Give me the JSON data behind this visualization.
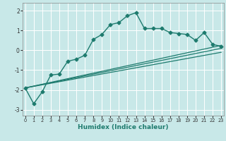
{
  "xlabel": "Humidex (Indice chaleur)",
  "x_ticks": [
    0,
    1,
    2,
    3,
    4,
    5,
    6,
    7,
    8,
    9,
    10,
    11,
    12,
    13,
    14,
    15,
    16,
    17,
    18,
    19,
    20,
    21,
    22,
    23
  ],
  "ylim": [
    -3.3,
    2.4
  ],
  "xlim": [
    -0.3,
    23.3
  ],
  "yticks": [
    -3,
    -2,
    -1,
    0,
    1,
    2
  ],
  "background_color": "#c8e8e8",
  "grid_color": "#ffffff",
  "line_color": "#1e7b6e",
  "line1_x": [
    0,
    1,
    2,
    3,
    4,
    5,
    6,
    7,
    8,
    9,
    10,
    11,
    12,
    13,
    14,
    15,
    16,
    17,
    18,
    19,
    20,
    21,
    22,
    23
  ],
  "line1_y": [
    -1.9,
    -2.7,
    -2.1,
    -1.25,
    -1.2,
    -0.55,
    -0.45,
    -0.25,
    0.55,
    0.8,
    1.3,
    1.4,
    1.75,
    1.9,
    1.1,
    1.1,
    1.1,
    0.9,
    0.85,
    0.8,
    0.5,
    0.9,
    0.3,
    0.2
  ],
  "line2_x": [
    0,
    23
  ],
  "line2_y": [
    -1.9,
    0.25
  ],
  "line3_x": [
    0,
    23
  ],
  "line3_y": [
    -1.9,
    0.1
  ],
  "line4_x": [
    0,
    23
  ],
  "line4_y": [
    -1.9,
    -0.1
  ]
}
